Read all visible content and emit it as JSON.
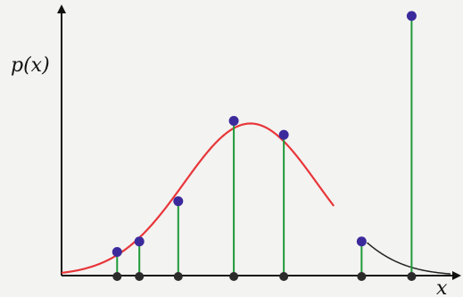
{
  "axes": {
    "y_label": "p(x)",
    "x_label": "x"
  },
  "colors": {
    "curve": "#e8363a",
    "tail": "#222222",
    "stem": "#1f9a3a",
    "marker": "#3b2a9c",
    "base_dot": "#2b2b2b",
    "axis": "#111111"
  },
  "samples": [
    {
      "x": 0.1,
      "p": 0.12
    },
    {
      "x": 0.14,
      "p": 0.18
    },
    {
      "x": 0.21,
      "p": 0.41
    },
    {
      "x": 0.31,
      "p": 0.87
    },
    {
      "x": 0.4,
      "p": 0.79
    },
    {
      "x": 0.54,
      "p": 0.18
    },
    {
      "x": 0.63,
      "p": 1.47
    }
  ]
}
